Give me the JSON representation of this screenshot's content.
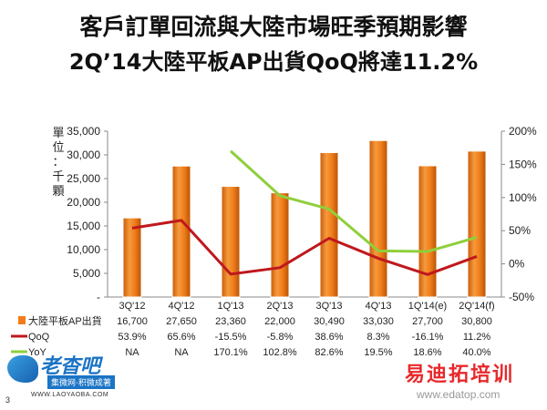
{
  "header": {
    "title_line1": "客戶訂單回流與大陸市場旺季預期影響",
    "title_line2": "2Q’14大陸平板AP出貨QoQ將達11.2%"
  },
  "chart_data": {
    "type": "bar",
    "categories": [
      "3Q'12",
      "4Q'12",
      "1Q'13",
      "2Q'13",
      "3Q'13",
      "4Q'13",
      "1Q'14(e)",
      "2Q'14(f)"
    ],
    "ylabel_left": "單位：千顆",
    "ylim_left": [
      0,
      35000
    ],
    "yticks_left": [
      "-",
      "5,000",
      "10,000",
      "15,000",
      "20,000",
      "25,000",
      "30,000",
      "35,000"
    ],
    "ylim_right": [
      -50,
      200
    ],
    "yticks_right": [
      "-50%",
      "0%",
      "50%",
      "100%",
      "150%",
      "200%"
    ],
    "series": [
      {
        "name": "大陸平板AP出貨",
        "type": "bar",
        "axis": "left",
        "values": [
          16700,
          27650,
          23360,
          22000,
          30490,
          33030,
          27700,
          30800
        ],
        "labels": [
          "16,700",
          "27,650",
          "23,360",
          "22,000",
          "30,490",
          "33,030",
          "27,700",
          "30,800"
        ],
        "color": "#f07d1a"
      },
      {
        "name": "QoQ",
        "type": "line",
        "axis": "right",
        "values": [
          53.9,
          65.6,
          -15.5,
          -5.8,
          38.6,
          8.3,
          -16.1,
          11.2
        ],
        "labels": [
          "53.9%",
          "65.6%",
          "-15.5%",
          "-5.8%",
          "38.6%",
          "8.3%",
          "-16.1%",
          "11.2%"
        ],
        "color": "#c0181d"
      },
      {
        "name": "YoY",
        "type": "line",
        "axis": "right",
        "values": [
          null,
          null,
          170.1,
          102.8,
          82.6,
          19.5,
          18.6,
          40.0
        ],
        "labels": [
          "NA",
          "NA",
          "170.1%",
          "102.8%",
          "82.6%",
          "19.5%",
          "18.6%",
          "40.0%"
        ],
        "color": "#8fcf3c"
      }
    ],
    "grid": false,
    "legend": "data-table-below"
  },
  "logo": {
    "main": "老杳吧",
    "sub": "集微网·积微成著",
    "url": "WWW.LAOYAOBA.COM"
  },
  "watermark": {
    "main": "易迪拓培训",
    "sub": "www.edatop.com"
  },
  "page_number": "3"
}
